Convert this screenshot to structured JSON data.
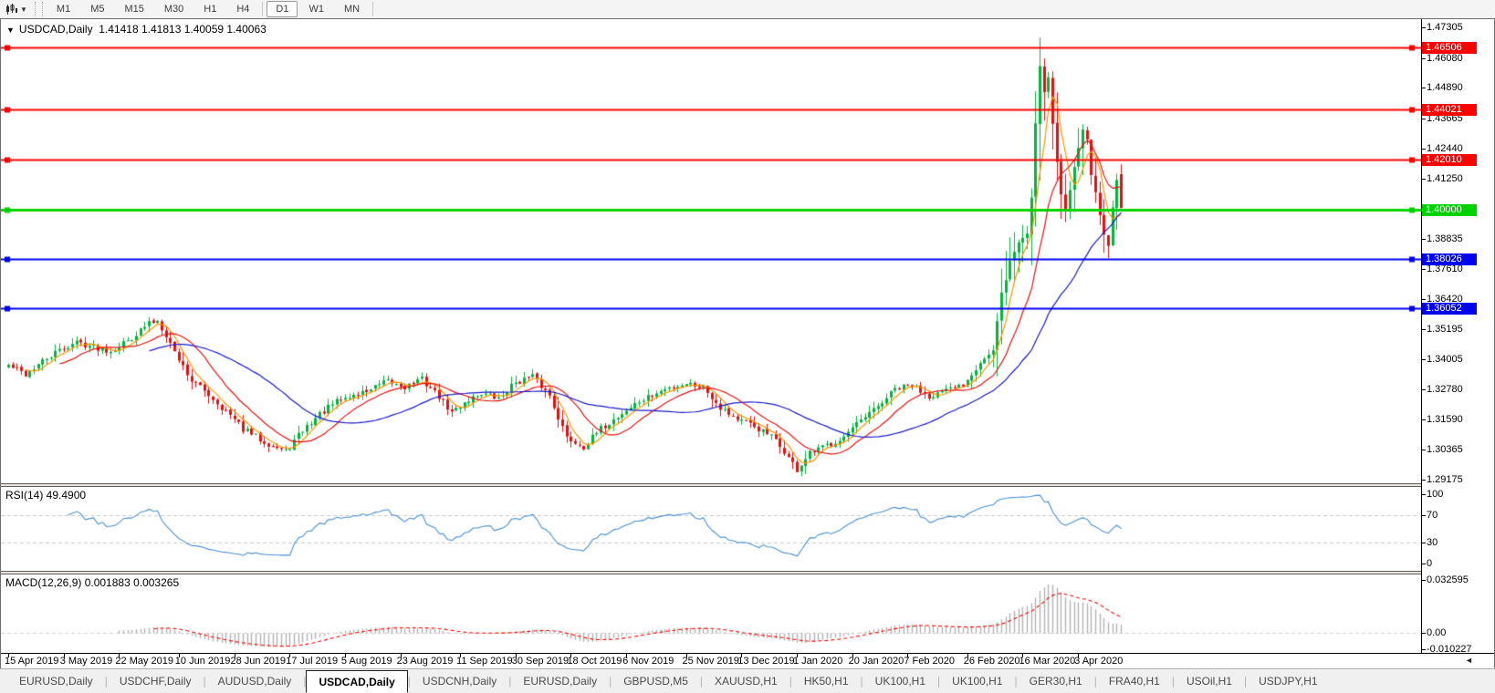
{
  "toolbar": {
    "chart_type_icon": "candlestick-chart-icon",
    "timeframes": [
      "M1",
      "M5",
      "M15",
      "M30",
      "H1",
      "H4",
      "D1",
      "W1",
      "MN"
    ],
    "active_timeframe": "D1"
  },
  "chart_window": {
    "header": {
      "symbol_title": "USDCAD,Daily",
      "ohlc_text": "1.41418 1.41813 1.40059 1.40063",
      "open": "1.41418",
      "high": "1.41813",
      "low": "1.40059",
      "close": "1.40063"
    }
  },
  "price_scale": {
    "top_price": 1.47305,
    "bottom_price": 1.29175,
    "ticks": [
      1.47305,
      1.4608,
      1.4489,
      1.43665,
      1.4244,
      1.4125,
      1.38835,
      1.3761,
      1.3642,
      1.35195,
      1.34005,
      1.3278,
      1.3159,
      1.30365,
      1.29175
    ]
  },
  "hlines": [
    {
      "price": 1.46506,
      "label": "1.46506",
      "color": "#fd0000",
      "thickness": 2
    },
    {
      "price": 1.44021,
      "label": "1.44021",
      "color": "#fd0000",
      "thickness": 2
    },
    {
      "price": 1.4201,
      "label": "1.42010",
      "color": "#fd0000",
      "thickness": 2
    },
    {
      "price": 1.4,
      "label": "1.40000",
      "color": "#00d200",
      "thickness": 3
    },
    {
      "price": 1.38026,
      "label": "1.38026",
      "color": "#0000f0",
      "thickness": 2
    },
    {
      "price": 1.36052,
      "label": "1.36052",
      "color": "#0000f0",
      "thickness": 2
    }
  ],
  "rsi_panel": {
    "label": "RSI(14) 49.4900",
    "scale_labels": [
      "100",
      "70",
      "30",
      "0"
    ],
    "scale_values": [
      100,
      70,
      30,
      0
    ],
    "level_lines": [
      70,
      30
    ],
    "line_color": "#4a90d2",
    "current_value": "49.4900"
  },
  "macd_panel": {
    "label": "MACD(12,26,9) 0.001883 0.003265",
    "scale_labels": [
      "0.032595",
      "0.00",
      "-0.010227"
    ],
    "scale_values": [
      0.032595,
      0,
      -0.010227
    ],
    "hist_color": "#b2b2b2",
    "signal_color": "#ff0000",
    "macd_value": "0.001883",
    "signal_value": "0.003265"
  },
  "date_axis": {
    "labels": [
      "15 Apr 2019",
      "3 May 2019",
      "22 May 2019",
      "10 Jun 2019",
      "28 Jun 2019",
      "17 Jul 2019",
      "5 Aug 2019",
      "23 Aug 2019",
      "11 Sep 2019",
      "30 Sep 2019",
      "18 Oct 2019",
      "6 Nov 2019",
      "25 Nov 2019",
      "13 Dec 2019",
      "1 Jan 2020",
      "20 Jan 2020",
      "7 Feb 2020",
      "26 Feb 2020",
      "16 Mar 2020",
      "3 Apr 2020"
    ]
  },
  "tab_bar": {
    "active_index": 3,
    "tabs": [
      "EURUSD,Daily",
      "USDCHF,Daily",
      "AUDUSD,Daily",
      "USDCAD,Daily",
      "USDCNH,Daily",
      "EURUSD,Daily",
      "GBPUSD,M5",
      "XAUUSD,H1",
      "HK50,H1",
      "UK100,H1",
      "UK100,H1",
      "GER30,H1",
      "FRA40,H1",
      "USOil,H1",
      "USDJPY,H1"
    ]
  },
  "chart_data": {
    "type": "candlestick",
    "symbol": "USDCAD",
    "timeframe": "Daily",
    "x_range": [
      "15 Apr 2019",
      "20 Apr 2020"
    ],
    "y_range": [
      1.29175,
      1.47305
    ],
    "candles": {
      "count": 262,
      "last": {
        "open": 1.41418,
        "high": 1.41813,
        "low": 1.40059,
        "close": 1.40063
      },
      "close_anchors": [
        [
          0,
          1.3375
        ],
        [
          4,
          1.334
        ],
        [
          8,
          1.339
        ],
        [
          12,
          1.3435
        ],
        [
          16,
          1.347
        ],
        [
          20,
          1.345
        ],
        [
          24,
          1.3435
        ],
        [
          28,
          1.3475
        ],
        [
          31,
          1.3515
        ],
        [
          33,
          1.3545
        ],
        [
          35,
          1.3555
        ],
        [
          37,
          1.35
        ],
        [
          39,
          1.343
        ],
        [
          43,
          1.3315
        ],
        [
          47,
          1.326
        ],
        [
          51,
          1.319
        ],
        [
          55,
          1.312
        ],
        [
          59,
          1.308
        ],
        [
          63,
          1.3045
        ],
        [
          65,
          1.303
        ],
        [
          69,
          1.3115
        ],
        [
          73,
          1.318
        ],
        [
          77,
          1.323
        ],
        [
          81,
          1.3255
        ],
        [
          85,
          1.328
        ],
        [
          89,
          1.331
        ],
        [
          93,
          1.329
        ],
        [
          97,
          1.332
        ],
        [
          101,
          1.325
        ],
        [
          104,
          1.3185
        ],
        [
          107,
          1.323
        ],
        [
          111,
          1.3265
        ],
        [
          115,
          1.324
        ],
        [
          119,
          1.331
        ],
        [
          123,
          1.333
        ],
        [
          127,
          1.3255
        ],
        [
          131,
          1.3085
        ],
        [
          135,
          1.305
        ],
        [
          139,
          1.312
        ],
        [
          143,
          1.317
        ],
        [
          147,
          1.322
        ],
        [
          151,
          1.3255
        ],
        [
          155,
          1.3285
        ],
        [
          159,
          1.3305
        ],
        [
          163,
          1.329
        ],
        [
          167,
          1.321
        ],
        [
          171,
          1.316
        ],
        [
          175,
          1.313
        ],
        [
          179,
          1.309
        ],
        [
          182,
          1.303
        ],
        [
          185,
          1.2955
        ],
        [
          188,
          1.302
        ],
        [
          192,
          1.3055
        ],
        [
          196,
          1.309
        ],
        [
          200,
          1.315
        ],
        [
          204,
          1.321
        ],
        [
          208,
          1.328
        ],
        [
          212,
          1.3295
        ],
        [
          216,
          1.3255
        ],
        [
          220,
          1.327
        ],
        [
          224,
          1.33
        ],
        [
          228,
          1.339
        ],
        [
          231,
          1.343
        ],
        [
          233,
          1.366
        ],
        [
          235,
          1.379
        ],
        [
          237,
          1.387
        ],
        [
          239,
          1.3905
        ],
        [
          240,
          1.405
        ],
        [
          241,
          1.435
        ],
        [
          242,
          1.458
        ],
        [
          243,
          1.448
        ],
        [
          244,
          1.453
        ],
        [
          245,
          1.435
        ],
        [
          246,
          1.419
        ],
        [
          247,
          1.406
        ],
        [
          248,
          1.3995
        ],
        [
          249,
          1.408
        ],
        [
          250,
          1.418
        ],
        [
          251,
          1.426
        ],
        [
          252,
          1.433
        ],
        [
          253,
          1.427
        ],
        [
          254,
          1.415
        ],
        [
          255,
          1.406
        ],
        [
          256,
          1.398
        ],
        [
          257,
          1.39
        ],
        [
          258,
          1.3865
        ],
        [
          259,
          1.4
        ],
        [
          260,
          1.413
        ],
        [
          261,
          1.40063
        ]
      ]
    },
    "extremes": {
      "peak_day": 242,
      "peak_high": 1.4689,
      "low_day": 185,
      "low": 1.2952
    },
    "up_color": "#00b43c",
    "down_color": "#e01010",
    "moving_averages": [
      {
        "name": "fast-ma",
        "period": 5,
        "color": "#ff9500"
      },
      {
        "name": "mid-ma",
        "period": 13,
        "color": "#e81313"
      },
      {
        "name": "slow-ma",
        "period": 34,
        "color": "#1a1acc"
      }
    ]
  }
}
